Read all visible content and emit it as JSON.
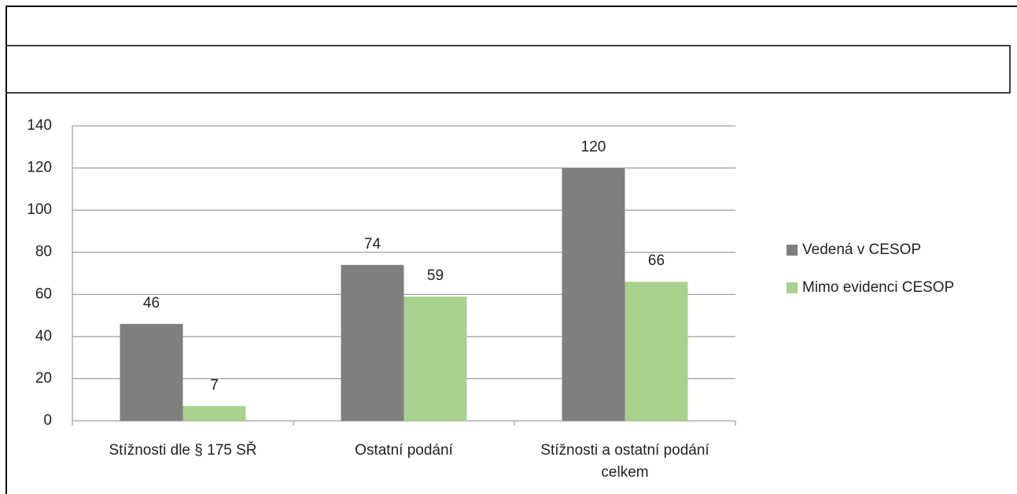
{
  "chart_data": {
    "type": "bar",
    "categories": [
      "Stížnosti dle § 175 SŘ",
      "Ostatní podání",
      "Stížnosti a ostatní podání celkem"
    ],
    "series": [
      {
        "name": "Vedená v CESOP",
        "color": "#7f7f7f",
        "values": [
          46,
          74,
          120
        ]
      },
      {
        "name": "Mimo evidenci CESOP",
        "color": "#a9d18e",
        "values": [
          7,
          59,
          66
        ]
      }
    ],
    "ylim": [
      0,
      140
    ],
    "yticks": [
      0,
      20,
      40,
      60,
      80,
      100,
      120,
      140
    ],
    "grid": true,
    "legend": "right"
  }
}
